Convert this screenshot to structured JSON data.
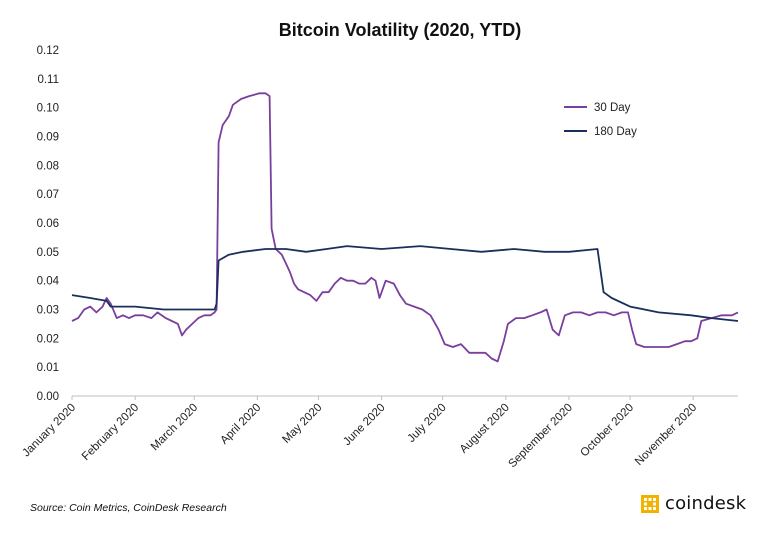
{
  "colors": {
    "series_30day": "#7A3E9D",
    "series_180day": "#1B2F5C",
    "brand_accent": "#F2B200"
  },
  "footer": {
    "source": "Source: Coin Metrics, CoinDesk Research",
    "brand": "coindesk",
    "brand_icon": "coindesk-logo-icon"
  },
  "chart_data": {
    "type": "line",
    "title": "Bitcoin Volatility (2020, YTD)",
    "xlabel": "",
    "ylabel": "",
    "ylim": [
      0,
      0.12
    ],
    "yticks": [
      "0.00",
      "0.01",
      "0.02",
      "0.03",
      "0.04",
      "0.05",
      "0.06",
      "0.07",
      "0.08",
      "0.09",
      "0.10",
      "0.11",
      "0.12"
    ],
    "xtick_labels": [
      "January 2020",
      "February 2020",
      "March 2020",
      "April 2020",
      "May 2020",
      "June 2020",
      "July 2020",
      "August 2020",
      "September 2020",
      "October 2020",
      "November 2020"
    ],
    "xtick_dates": [
      "2020-01-01",
      "2020-02-01",
      "2020-03-01",
      "2020-04-01",
      "2020-05-01",
      "2020-06-01",
      "2020-07-01",
      "2020-08-01",
      "2020-09-01",
      "2020-10-01",
      "2020-11-01"
    ],
    "xlim": [
      "2020-01-01",
      "2020-11-23"
    ],
    "grid": false,
    "legend": "top-right",
    "series": [
      {
        "name": "30 Day",
        "color": "#7A3E9D",
        "points": [
          [
            "2020-01-01",
            0.026
          ],
          [
            "2020-01-04",
            0.027
          ],
          [
            "2020-01-07",
            0.03
          ],
          [
            "2020-01-10",
            0.031
          ],
          [
            "2020-01-13",
            0.029
          ],
          [
            "2020-01-16",
            0.031
          ],
          [
            "2020-01-18",
            0.034
          ],
          [
            "2020-01-20",
            0.032
          ],
          [
            "2020-01-23",
            0.027
          ],
          [
            "2020-01-26",
            0.028
          ],
          [
            "2020-01-29",
            0.027
          ],
          [
            "2020-02-01",
            0.028
          ],
          [
            "2020-02-05",
            0.028
          ],
          [
            "2020-02-09",
            0.027
          ],
          [
            "2020-02-12",
            0.029
          ],
          [
            "2020-02-16",
            0.027
          ],
          [
            "2020-02-19",
            0.026
          ],
          [
            "2020-02-22",
            0.025
          ],
          [
            "2020-02-24",
            0.021
          ],
          [
            "2020-02-26",
            0.023
          ],
          [
            "2020-02-29",
            0.025
          ],
          [
            "2020-03-03",
            0.027
          ],
          [
            "2020-03-06",
            0.028
          ],
          [
            "2020-03-09",
            0.028
          ],
          [
            "2020-03-11",
            0.029
          ],
          [
            "2020-03-12",
            0.03
          ],
          [
            "2020-03-13",
            0.088
          ],
          [
            "2020-03-15",
            0.094
          ],
          [
            "2020-03-18",
            0.097
          ],
          [
            "2020-03-20",
            0.101
          ],
          [
            "2020-03-24",
            0.103
          ],
          [
            "2020-03-28",
            0.104
          ],
          [
            "2020-04-02",
            0.105
          ],
          [
            "2020-04-05",
            0.105
          ],
          [
            "2020-04-07",
            0.104
          ],
          [
            "2020-04-08",
            0.058
          ],
          [
            "2020-04-10",
            0.051
          ],
          [
            "2020-04-13",
            0.049
          ],
          [
            "2020-04-15",
            0.046
          ],
          [
            "2020-04-17",
            0.043
          ],
          [
            "2020-04-19",
            0.039
          ],
          [
            "2020-04-21",
            0.037
          ],
          [
            "2020-04-24",
            0.036
          ],
          [
            "2020-04-27",
            0.035
          ],
          [
            "2020-04-30",
            0.033
          ],
          [
            "2020-05-03",
            0.036
          ],
          [
            "2020-05-06",
            0.036
          ],
          [
            "2020-05-09",
            0.039
          ],
          [
            "2020-05-12",
            0.041
          ],
          [
            "2020-05-15",
            0.04
          ],
          [
            "2020-05-18",
            0.04
          ],
          [
            "2020-05-21",
            0.039
          ],
          [
            "2020-05-24",
            0.039
          ],
          [
            "2020-05-27",
            0.041
          ],
          [
            "2020-05-29",
            0.04
          ],
          [
            "2020-05-31",
            0.034
          ],
          [
            "2020-06-03",
            0.04
          ],
          [
            "2020-06-07",
            0.039
          ],
          [
            "2020-06-10",
            0.035
          ],
          [
            "2020-06-13",
            0.032
          ],
          [
            "2020-06-17",
            0.031
          ],
          [
            "2020-06-21",
            0.03
          ],
          [
            "2020-06-25",
            0.028
          ],
          [
            "2020-06-29",
            0.023
          ],
          [
            "2020-07-02",
            0.018
          ],
          [
            "2020-07-06",
            0.017
          ],
          [
            "2020-07-10",
            0.018
          ],
          [
            "2020-07-14",
            0.015
          ],
          [
            "2020-07-18",
            0.015
          ],
          [
            "2020-07-22",
            0.015
          ],
          [
            "2020-07-25",
            0.013
          ],
          [
            "2020-07-28",
            0.012
          ],
          [
            "2020-07-31",
            0.019
          ],
          [
            "2020-08-02",
            0.025
          ],
          [
            "2020-08-06",
            0.027
          ],
          [
            "2020-08-10",
            0.027
          ],
          [
            "2020-08-14",
            0.028
          ],
          [
            "2020-08-18",
            0.029
          ],
          [
            "2020-08-21",
            0.03
          ],
          [
            "2020-08-24",
            0.023
          ],
          [
            "2020-08-27",
            0.021
          ],
          [
            "2020-08-30",
            0.028
          ],
          [
            "2020-09-03",
            0.029
          ],
          [
            "2020-09-07",
            0.029
          ],
          [
            "2020-09-11",
            0.028
          ],
          [
            "2020-09-15",
            0.029
          ],
          [
            "2020-09-19",
            0.029
          ],
          [
            "2020-09-23",
            0.028
          ],
          [
            "2020-09-27",
            0.029
          ],
          [
            "2020-09-30",
            0.029
          ],
          [
            "2020-10-02",
            0.023
          ],
          [
            "2020-10-04",
            0.018
          ],
          [
            "2020-10-08",
            0.017
          ],
          [
            "2020-10-12",
            0.017
          ],
          [
            "2020-10-16",
            0.017
          ],
          [
            "2020-10-20",
            0.017
          ],
          [
            "2020-10-24",
            0.018
          ],
          [
            "2020-10-28",
            0.019
          ],
          [
            "2020-10-31",
            0.019
          ],
          [
            "2020-11-03",
            0.02
          ],
          [
            "2020-11-05",
            0.026
          ],
          [
            "2020-11-10",
            0.027
          ],
          [
            "2020-11-15",
            0.028
          ],
          [
            "2020-11-20",
            0.028
          ],
          [
            "2020-11-23",
            0.029
          ]
        ]
      },
      {
        "name": "180 Day",
        "color": "#1B2F5C",
        "points": [
          [
            "2020-01-01",
            0.035
          ],
          [
            "2020-01-10",
            0.034
          ],
          [
            "2020-01-18",
            0.033
          ],
          [
            "2020-01-20",
            0.031
          ],
          [
            "2020-02-01",
            0.031
          ],
          [
            "2020-02-15",
            0.03
          ],
          [
            "2020-03-01",
            0.03
          ],
          [
            "2020-03-11",
            0.03
          ],
          [
            "2020-03-12",
            0.032
          ],
          [
            "2020-03-13",
            0.047
          ],
          [
            "2020-03-18",
            0.049
          ],
          [
            "2020-03-25",
            0.05
          ],
          [
            "2020-04-05",
            0.051
          ],
          [
            "2020-04-15",
            0.051
          ],
          [
            "2020-04-25",
            0.05
          ],
          [
            "2020-05-05",
            0.051
          ],
          [
            "2020-05-15",
            0.052
          ],
          [
            "2020-06-01",
            0.051
          ],
          [
            "2020-06-20",
            0.052
          ],
          [
            "2020-07-05",
            0.051
          ],
          [
            "2020-07-20",
            0.05
          ],
          [
            "2020-08-05",
            0.051
          ],
          [
            "2020-08-20",
            0.05
          ],
          [
            "2020-09-01",
            0.05
          ],
          [
            "2020-09-15",
            0.051
          ],
          [
            "2020-09-18",
            0.036
          ],
          [
            "2020-09-22",
            0.034
          ],
          [
            "2020-10-01",
            0.031
          ],
          [
            "2020-10-15",
            0.029
          ],
          [
            "2020-10-31",
            0.028
          ],
          [
            "2020-11-10",
            0.027
          ],
          [
            "2020-11-23",
            0.026
          ]
        ]
      }
    ]
  }
}
